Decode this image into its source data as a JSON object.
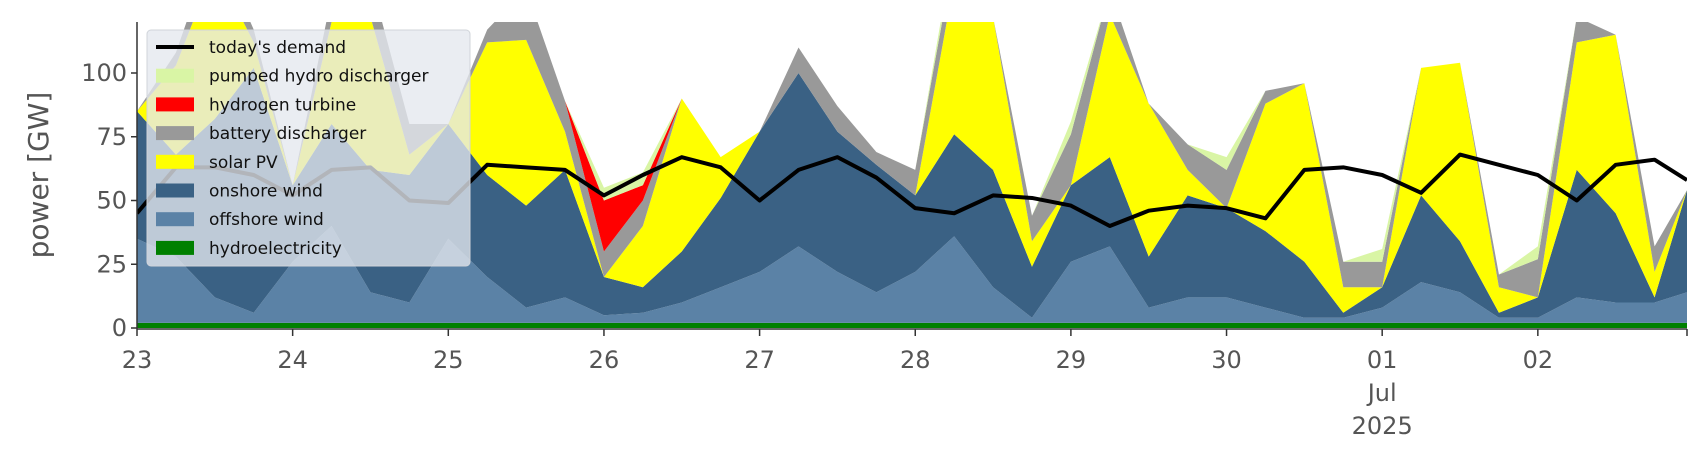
{
  "chart_data": {
    "type": "area",
    "ylabel": "power [GW]",
    "ylim": [
      0,
      120
    ],
    "xlim": [
      "2025-06-23",
      "2025-07-02 23:00"
    ],
    "y_ticks": [
      "0",
      "25",
      "50",
      "75",
      "100"
    ],
    "x_ticks": [
      {
        "date": "2025-06-23",
        "lines": [
          "23"
        ]
      },
      {
        "date": "2025-06-24",
        "lines": [
          "24"
        ]
      },
      {
        "date": "2025-06-25",
        "lines": [
          "25"
        ]
      },
      {
        "date": "2025-06-26",
        "lines": [
          "26"
        ]
      },
      {
        "date": "2025-06-27",
        "lines": [
          "27"
        ]
      },
      {
        "date": "2025-06-28",
        "lines": [
          "28"
        ]
      },
      {
        "date": "2025-06-29",
        "lines": [
          "29"
        ]
      },
      {
        "date": "2025-06-30",
        "lines": [
          "30"
        ]
      },
      {
        "date": "2025-07-01",
        "lines": [
          "01",
          "Jul",
          "2025"
        ]
      },
      {
        "date": "2025-07-02",
        "lines": [
          "02"
        ]
      }
    ],
    "legend_position": "top-left",
    "x": [
      "2025-06-23 00:00",
      "2025-06-23 06:00",
      "2025-06-23 12:00",
      "2025-06-23 18:00",
      "2025-06-24 00:00",
      "2025-06-24 06:00",
      "2025-06-24 12:00",
      "2025-06-24 18:00",
      "2025-06-25 00:00",
      "2025-06-25 06:00",
      "2025-06-25 12:00",
      "2025-06-25 18:00",
      "2025-06-26 00:00",
      "2025-06-26 06:00",
      "2025-06-26 12:00",
      "2025-06-26 18:00",
      "2025-06-27 00:00",
      "2025-06-27 06:00",
      "2025-06-27 12:00",
      "2025-06-27 18:00",
      "2025-06-28 00:00",
      "2025-06-28 06:00",
      "2025-06-28 12:00",
      "2025-06-28 18:00",
      "2025-06-29 00:00",
      "2025-06-29 06:00",
      "2025-06-29 12:00",
      "2025-06-29 18:00",
      "2025-06-30 00:00",
      "2025-06-30 06:00",
      "2025-06-30 12:00",
      "2025-06-30 18:00",
      "2025-07-01 00:00",
      "2025-07-01 06:00",
      "2025-07-01 12:00",
      "2025-07-01 18:00",
      "2025-07-02 00:00",
      "2025-07-02 06:00",
      "2025-07-02 12:00",
      "2025-07-02 18:00",
      "2025-07-02 23:00"
    ],
    "series": [
      {
        "name": "hydroelectricity",
        "color": "#008000",
        "values": [
          2,
          2,
          2,
          2,
          2,
          2,
          2,
          2,
          2,
          2,
          2,
          2,
          2,
          2,
          2,
          2,
          2,
          2,
          2,
          2,
          2,
          2,
          2,
          2,
          2,
          2,
          2,
          2,
          2,
          2,
          2,
          2,
          2,
          2,
          2,
          2,
          2,
          2,
          2,
          2,
          2
        ]
      },
      {
        "name": "offshore wind",
        "color": "#5b82a6",
        "values": [
          33,
          26,
          10,
          4,
          24,
          38,
          12,
          8,
          33,
          18,
          6,
          10,
          3,
          4,
          8,
          14,
          20,
          30,
          20,
          12,
          20,
          34,
          14,
          2,
          24,
          30,
          6,
          10,
          10,
          6,
          2,
          2,
          6,
          16,
          12,
          2,
          2,
          10,
          8,
          8,
          12
        ]
      },
      {
        "name": "onshore wind",
        "color": "#3a6184",
        "values": [
          50,
          40,
          70,
          96,
          30,
          40,
          48,
          50,
          45,
          40,
          40,
          50,
          15,
          10,
          20,
          35,
          55,
          68,
          55,
          50,
          30,
          40,
          46,
          20,
          30,
          35,
          20,
          40,
          35,
          30,
          22,
          2,
          8,
          34,
          20,
          2,
          8,
          50,
          35,
          2,
          40
        ]
      },
      {
        "name": "solar PV",
        "color": "#ffff00",
        "values": [
          0,
          35,
          60,
          10,
          0,
          40,
          60,
          8,
          0,
          52,
          65,
          15,
          0,
          24,
          60,
          16,
          0,
          0,
          0,
          0,
          0,
          60,
          60,
          10,
          0,
          56,
          60,
          10,
          0,
          50,
          70,
          10,
          0,
          50,
          70,
          10,
          0,
          50,
          70,
          10,
          0
        ]
      },
      {
        "name": "battery discharger",
        "color": "#999999",
        "values": [
          0,
          5,
          10,
          5,
          0,
          10,
          15,
          12,
          0,
          5,
          20,
          12,
          10,
          10,
          0,
          0,
          0,
          10,
          10,
          5,
          10,
          10,
          0,
          10,
          20,
          10,
          0,
          10,
          15,
          5,
          0,
          10,
          10,
          0,
          0,
          5,
          15,
          10,
          0,
          10,
          0
        ]
      },
      {
        "name": "hydrogen turbine",
        "color": "#ff0000",
        "values": [
          0,
          0,
          0,
          0,
          0,
          0,
          0,
          0,
          0,
          0,
          0,
          0,
          20,
          6,
          0,
          0,
          0,
          0,
          0,
          0,
          0,
          0,
          0,
          0,
          0,
          0,
          0,
          0,
          0,
          0,
          0,
          0,
          0,
          0,
          0,
          0,
          0,
          0,
          0,
          0,
          0
        ]
      },
      {
        "name": "pumped hydro discharger",
        "color": "#d9f5a5",
        "values": [
          0,
          0,
          0,
          0,
          0,
          0,
          0,
          0,
          0,
          0,
          0,
          0,
          5,
          5,
          0,
          0,
          0,
          0,
          0,
          0,
          0,
          5,
          0,
          0,
          5,
          0,
          0,
          0,
          5,
          0,
          0,
          0,
          5,
          0,
          0,
          0,
          5,
          0,
          0,
          0,
          0
        ]
      }
    ],
    "demand": {
      "name": "today's demand",
      "color": "#000000",
      "values": [
        45,
        63,
        63,
        60,
        52,
        62,
        63,
        50,
        49,
        64,
        63,
        62,
        52,
        60,
        67,
        63,
        50,
        62,
        67,
        59,
        47,
        45,
        52,
        51,
        48,
        40,
        46,
        48,
        47,
        43,
        62,
        63,
        60,
        53,
        68,
        64,
        60,
        50,
        64,
        66,
        58
      ]
    }
  }
}
